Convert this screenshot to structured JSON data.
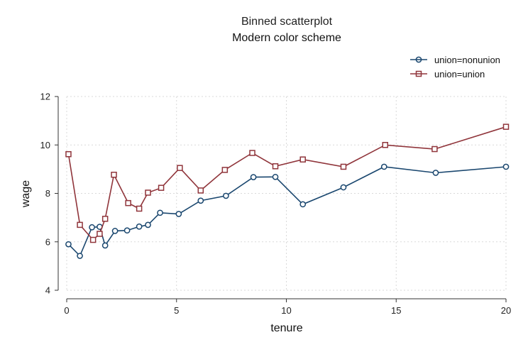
{
  "chart_data": {
    "type": "scatter",
    "title": "Binned scatterplot",
    "subtitle": "Modern color scheme",
    "xlabel": "tenure",
    "ylabel": "wage",
    "xlim": [
      0,
      20
    ],
    "ylim": [
      4,
      12
    ],
    "xticks": [
      "0",
      "5",
      "10",
      "15",
      "20"
    ],
    "yticks": [
      "4",
      "6",
      "8",
      "10",
      "12"
    ],
    "grid": true,
    "legend_position": "top-right",
    "series": [
      {
        "name": "union=nonunion",
        "color": "#1a476f",
        "marker": "circle",
        "x": [
          0.08,
          0.6,
          1.15,
          1.5,
          1.75,
          2.2,
          2.75,
          3.3,
          3.7,
          4.25,
          5.1,
          6.1,
          7.25,
          8.5,
          9.5,
          10.75,
          12.6,
          14.45,
          16.8,
          20.0
        ],
        "y": [
          5.9,
          5.42,
          6.6,
          6.62,
          5.85,
          6.45,
          6.47,
          6.63,
          6.7,
          7.2,
          7.15,
          7.7,
          7.9,
          8.67,
          8.68,
          7.55,
          8.25,
          9.1,
          8.85,
          9.1
        ]
      },
      {
        "name": "union=union",
        "color": "#90353b",
        "marker": "square",
        "x": [
          0.08,
          0.6,
          1.2,
          1.5,
          1.75,
          2.15,
          2.8,
          3.3,
          3.7,
          4.3,
          5.15,
          6.1,
          7.2,
          8.45,
          9.5,
          10.75,
          12.6,
          14.5,
          16.75,
          20.0
        ],
        "y": [
          9.62,
          6.7,
          6.08,
          6.33,
          6.95,
          8.77,
          7.6,
          7.37,
          8.03,
          8.23,
          9.05,
          8.12,
          8.97,
          9.67,
          9.12,
          9.4,
          9.1,
          10.0,
          9.83,
          10.75
        ]
      }
    ]
  }
}
